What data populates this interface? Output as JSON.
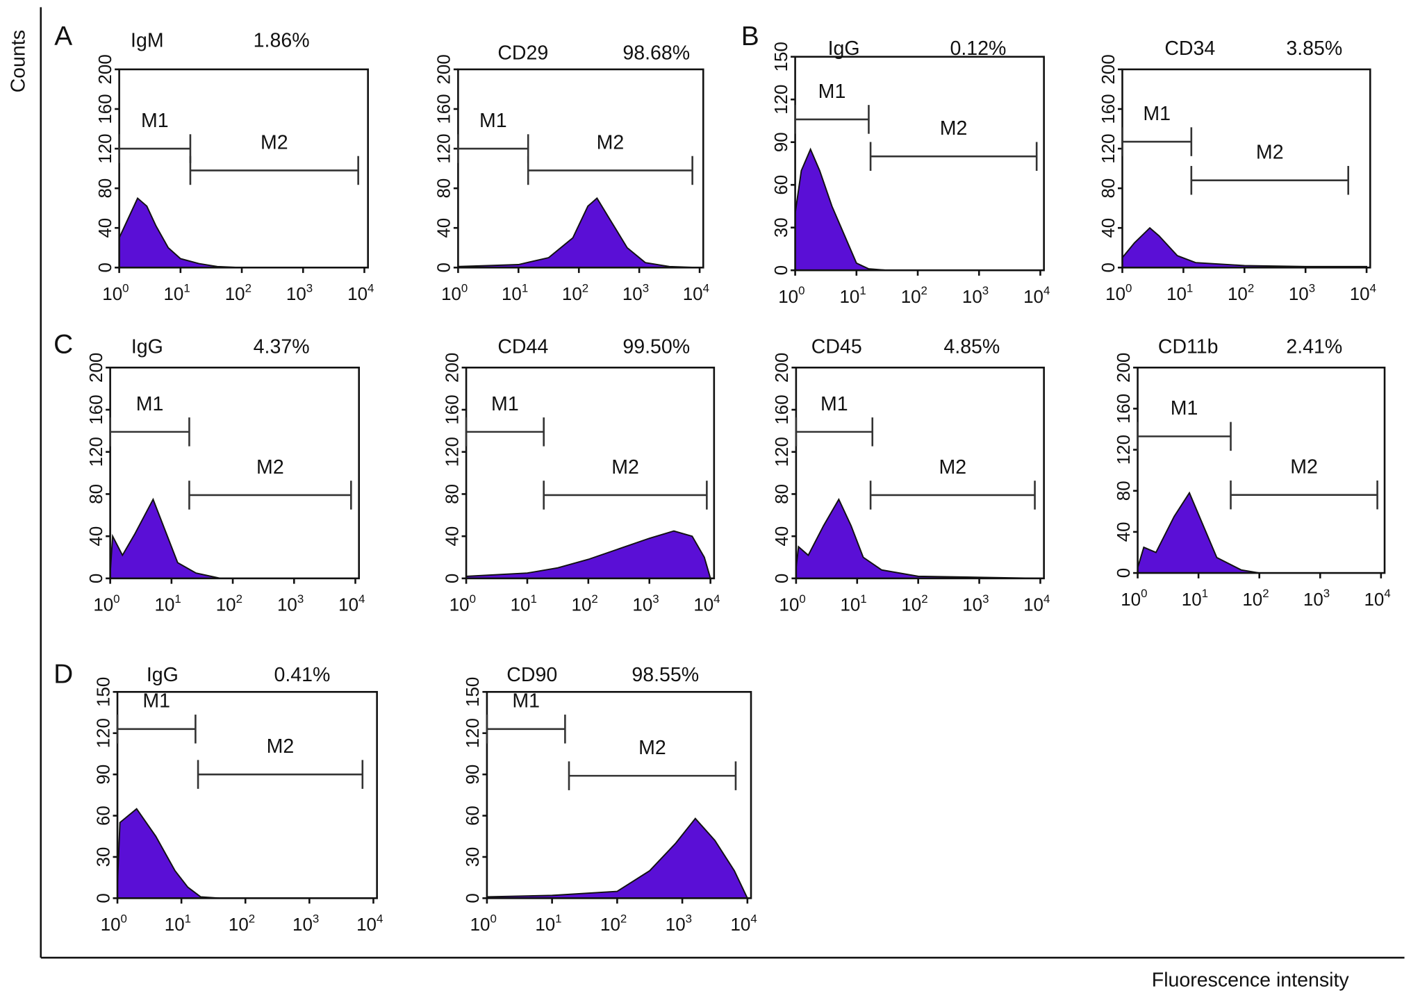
{
  "axis_labels": {
    "y": "Counts",
    "x": "Fluorescence intensity"
  },
  "panel_letters": [
    "A",
    "B",
    "C",
    "D"
  ],
  "colors": {
    "fill": "#5a0fd6",
    "line": "#111111"
  },
  "chart_data": [
    {
      "type": "area",
      "group": "A",
      "marker": "IgM",
      "percent": "1.86%",
      "ylim": [
        0,
        200
      ],
      "yticks": [
        0,
        40,
        80,
        120,
        160,
        200
      ],
      "xlim_log10": [
        0,
        4
      ],
      "gates": [
        {
          "label": "M1",
          "range_log10": [
            0,
            1.16
          ],
          "level": 120
        },
        {
          "label": "M2",
          "range_log10": [
            1.16,
            3.9
          ],
          "level": 98
        }
      ],
      "points": [
        [
          0,
          30
        ],
        [
          0.15,
          50
        ],
        [
          0.3,
          70
        ],
        [
          0.45,
          62
        ],
        [
          0.6,
          42
        ],
        [
          0.8,
          20
        ],
        [
          1.0,
          9
        ],
        [
          1.3,
          4
        ],
        [
          1.6,
          1
        ],
        [
          2,
          0
        ],
        [
          4,
          0
        ]
      ]
    },
    {
      "type": "area",
      "group": "A",
      "marker": "CD29",
      "percent": "98.68%",
      "ylim": [
        0,
        200
      ],
      "yticks": [
        0,
        40,
        80,
        120,
        160,
        200
      ],
      "xlim_log10": [
        0,
        4
      ],
      "gates": [
        {
          "label": "M1",
          "range_log10": [
            0,
            1.16
          ],
          "level": 120
        },
        {
          "label": "M2",
          "range_log10": [
            1.16,
            3.88
          ],
          "level": 98
        }
      ],
      "points": [
        [
          0,
          1
        ],
        [
          1,
          3
        ],
        [
          1.5,
          10
        ],
        [
          1.9,
          30
        ],
        [
          2.15,
          62
        ],
        [
          2.3,
          70
        ],
        [
          2.5,
          50
        ],
        [
          2.8,
          20
        ],
        [
          3.1,
          5
        ],
        [
          3.5,
          1
        ],
        [
          4,
          0
        ]
      ]
    },
    {
      "type": "area",
      "group": "B",
      "marker": "IgG",
      "percent": "0.12%",
      "ylim": [
        0,
        150
      ],
      "yticks": [
        0,
        30,
        60,
        90,
        120,
        150
      ],
      "xlim_log10": [
        0,
        4
      ],
      "gates": [
        {
          "label": "M1",
          "range_log10": [
            0,
            1.2
          ],
          "level": 106
        },
        {
          "label": "M2",
          "range_log10": [
            1.23,
            3.94
          ],
          "level": 80
        }
      ],
      "points": [
        [
          0,
          40
        ],
        [
          0.1,
          70
        ],
        [
          0.25,
          85
        ],
        [
          0.4,
          70
        ],
        [
          0.6,
          45
        ],
        [
          0.8,
          25
        ],
        [
          1.0,
          5
        ],
        [
          1.2,
          1
        ],
        [
          1.5,
          0
        ],
        [
          4,
          0
        ]
      ]
    },
    {
      "type": "area",
      "group": "B",
      "marker": "CD34",
      "percent": "3.85%",
      "ylim": [
        0,
        200
      ],
      "yticks": [
        0,
        40,
        80,
        120,
        160,
        200
      ],
      "xlim_log10": [
        0,
        4
      ],
      "gates": [
        {
          "label": "M1",
          "range_log10": [
            0,
            1.13
          ],
          "level": 127
        },
        {
          "label": "M2",
          "range_log10": [
            1.13,
            3.7
          ],
          "level": 88
        }
      ],
      "points": [
        [
          0,
          10
        ],
        [
          0.2,
          25
        ],
        [
          0.45,
          40
        ],
        [
          0.6,
          32
        ],
        [
          0.9,
          12
        ],
        [
          1.2,
          5
        ],
        [
          2,
          2
        ],
        [
          3,
          1
        ],
        [
          4,
          1
        ]
      ]
    },
    {
      "type": "area",
      "group": "C",
      "marker": "IgG",
      "percent": "4.37%",
      "ylim": [
        0,
        200
      ],
      "yticks": [
        0,
        40,
        80,
        120,
        160,
        200
      ],
      "xlim_log10": [
        0,
        4
      ],
      "gates": [
        {
          "label": "M1",
          "range_log10": [
            0,
            1.29
          ],
          "level": 139
        },
        {
          "label": "M2",
          "range_log10": [
            1.29,
            3.93
          ],
          "level": 79
        }
      ],
      "points": [
        [
          0,
          5
        ],
        [
          0.04,
          40
        ],
        [
          0.2,
          22
        ],
        [
          0.4,
          42
        ],
        [
          0.7,
          75
        ],
        [
          0.9,
          45
        ],
        [
          1.1,
          15
        ],
        [
          1.4,
          5
        ],
        [
          1.8,
          0
        ],
        [
          4,
          0
        ]
      ]
    },
    {
      "type": "area",
      "group": "C",
      "marker": "CD44",
      "percent": "99.50%",
      "ylim": [
        0,
        200
      ],
      "yticks": [
        0,
        40,
        80,
        120,
        160,
        200
      ],
      "xlim_log10": [
        0,
        4
      ],
      "gates": [
        {
          "label": "M1",
          "range_log10": [
            0,
            1.27
          ],
          "level": 139
        },
        {
          "label": "M2",
          "range_log10": [
            1.27,
            3.94
          ],
          "level": 79
        }
      ],
      "points": [
        [
          0,
          2
        ],
        [
          1,
          5
        ],
        [
          1.5,
          10
        ],
        [
          2,
          18
        ],
        [
          2.5,
          28
        ],
        [
          3,
          38
        ],
        [
          3.4,
          45
        ],
        [
          3.7,
          40
        ],
        [
          3.9,
          20
        ],
        [
          4,
          0
        ]
      ]
    },
    {
      "type": "area",
      "group": "C",
      "marker": "CD45",
      "percent": "4.85%",
      "ylim": [
        0,
        200
      ],
      "yticks": [
        0,
        40,
        80,
        120,
        160,
        200
      ],
      "xlim_log10": [
        0,
        4
      ],
      "gates": [
        {
          "label": "M1",
          "range_log10": [
            0,
            1.25
          ],
          "level": 139
        },
        {
          "label": "M2",
          "range_log10": [
            1.22,
            3.91
          ],
          "level": 79
        }
      ],
      "points": [
        [
          0,
          10
        ],
        [
          0.04,
          30
        ],
        [
          0.2,
          22
        ],
        [
          0.45,
          50
        ],
        [
          0.7,
          75
        ],
        [
          0.9,
          50
        ],
        [
          1.1,
          20
        ],
        [
          1.4,
          8
        ],
        [
          2,
          2
        ],
        [
          3,
          1
        ],
        [
          4,
          0
        ]
      ]
    },
    {
      "type": "area",
      "group": "C",
      "marker": "CD11b",
      "percent": "2.41%",
      "ylim": [
        0,
        200
      ],
      "yticks": [
        0,
        40,
        80,
        120,
        160,
        200
      ],
      "xlim_log10": [
        0,
        4
      ],
      "gates": [
        {
          "label": "M1",
          "range_log10": [
            0,
            1.53
          ],
          "level": 133
        },
        {
          "label": "M2",
          "range_log10": [
            1.53,
            3.94
          ],
          "level": 76
        }
      ],
      "points": [
        [
          0,
          5
        ],
        [
          0.1,
          25
        ],
        [
          0.3,
          20
        ],
        [
          0.6,
          55
        ],
        [
          0.85,
          78
        ],
        [
          1.05,
          50
        ],
        [
          1.3,
          15
        ],
        [
          1.7,
          3
        ],
        [
          2,
          0
        ],
        [
          4,
          0
        ]
      ]
    },
    {
      "type": "area",
      "group": "D",
      "marker": "IgG",
      "percent": "0.41%",
      "ylim": [
        0,
        150
      ],
      "yticks": [
        0,
        30,
        60,
        90,
        120,
        150
      ],
      "xlim_log10": [
        0,
        4
      ],
      "gates": [
        {
          "label": "M1",
          "range_log10": [
            0,
            1.22
          ],
          "level": 123
        },
        {
          "label": "M2",
          "range_log10": [
            1.26,
            3.83
          ],
          "level": 90
        }
      ],
      "points": [
        [
          0,
          10
        ],
        [
          0.04,
          55
        ],
        [
          0.3,
          65
        ],
        [
          0.6,
          45
        ],
        [
          0.9,
          20
        ],
        [
          1.1,
          8
        ],
        [
          1.3,
          1
        ],
        [
          1.6,
          0
        ],
        [
          4,
          0
        ]
      ]
    },
    {
      "type": "area",
      "group": "D",
      "marker": "CD90",
      "percent": "98.55%",
      "ylim": [
        0,
        150
      ],
      "yticks": [
        0,
        30,
        60,
        90,
        120,
        150
      ],
      "xlim_log10": [
        0,
        4
      ],
      "gates": [
        {
          "label": "M1",
          "range_log10": [
            0,
            1.2
          ],
          "level": 123
        },
        {
          "label": "M2",
          "range_log10": [
            1.26,
            3.82
          ],
          "level": 89
        }
      ],
      "points": [
        [
          0,
          1
        ],
        [
          1,
          2
        ],
        [
          2,
          5
        ],
        [
          2.5,
          20
        ],
        [
          2.9,
          40
        ],
        [
          3.2,
          58
        ],
        [
          3.5,
          42
        ],
        [
          3.8,
          20
        ],
        [
          4,
          0
        ]
      ]
    }
  ]
}
